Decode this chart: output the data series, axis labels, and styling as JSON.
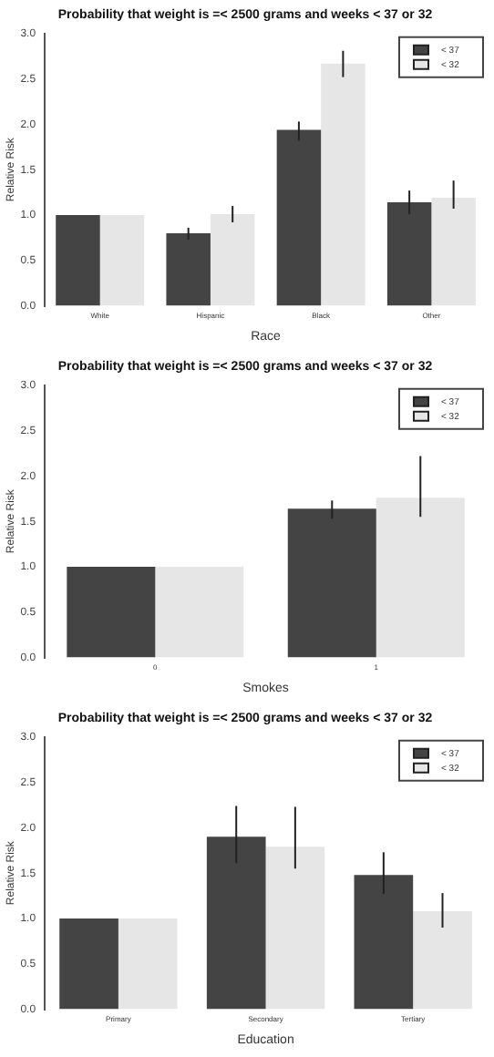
{
  "chart_data": [
    {
      "type": "bar",
      "title": "Probability that weight is =< 2500 grams and weeks < 37 or 32",
      "xlabel": "Race",
      "ylabel": "Relative Risk",
      "categories": [
        "White",
        "Hispanic",
        "Black",
        "Other"
      ],
      "ylim": [
        0,
        3
      ],
      "yticks": [
        {
          "value": 0,
          "label": "0.0"
        },
        {
          "value": 0.5,
          "label": "0.5"
        },
        {
          "value": 1,
          "label": "1.0"
        },
        {
          "value": 1.5,
          "label": "1.5"
        },
        {
          "value": 2,
          "label": "2.0"
        },
        {
          "value": 2.5,
          "label": "2.5"
        },
        {
          "value": 3,
          "label": "3.0"
        }
      ],
      "legend": "top right",
      "grid": false,
      "series": [
        {
          "name": "< 37",
          "color": "#444444",
          "values": [
            1,
            0.8,
            1.94,
            1.14
          ],
          "errors": [
            null,
            [
              0.73,
              0.86
            ],
            [
              1.82,
              2.03
            ],
            [
              1.01,
              1.27
            ]
          ]
        },
        {
          "name": "< 32",
          "color": "#e6e6e6",
          "values": [
            1,
            1.01,
            2.67,
            1.19
          ],
          "errors": [
            null,
            [
              0.92,
              1.1
            ],
            [
              2.52,
              2.81
            ],
            [
              1.07,
              1.38
            ]
          ]
        }
      ]
    },
    {
      "type": "bar",
      "title": "Probability that weight is =< 2500 grams and weeks < 37 or 32",
      "xlabel": "Smokes",
      "ylabel": "Relative Risk",
      "categories": [
        "0",
        "1"
      ],
      "ylim": [
        0,
        3
      ],
      "yticks": [
        {
          "value": 0,
          "label": "0.0"
        },
        {
          "value": 0.5,
          "label": "0.5"
        },
        {
          "value": 1,
          "label": "1.0"
        },
        {
          "value": 1.5,
          "label": "1.5"
        },
        {
          "value": 2,
          "label": "2.0"
        },
        {
          "value": 2.5,
          "label": "2.5"
        },
        {
          "value": 3,
          "label": "3.0"
        }
      ],
      "legend": "top right",
      "grid": false,
      "series": [
        {
          "name": "< 37",
          "color": "#444444",
          "values": [
            1,
            1.64
          ],
          "errors": [
            null,
            [
              1.53,
              1.73
            ]
          ]
        },
        {
          "name": "< 32",
          "color": "#e6e6e6",
          "values": [
            1,
            1.76
          ],
          "errors": [
            null,
            [
              1.55,
              2.22
            ]
          ]
        }
      ]
    },
    {
      "type": "bar",
      "title": "Probability that weight is =< 2500 grams and weeks < 37 or 32",
      "xlabel": "Education",
      "ylabel": "Relative Risk",
      "categories": [
        "Primary",
        "Secondary",
        "Tertiary"
      ],
      "ylim": [
        0,
        3
      ],
      "yticks": [
        {
          "value": 0,
          "label": "0.0"
        },
        {
          "value": 0.5,
          "label": "0.5"
        },
        {
          "value": 1,
          "label": "1.0"
        },
        {
          "value": 1.5,
          "label": "1.5"
        },
        {
          "value": 2,
          "label": "2.0"
        },
        {
          "value": 2.5,
          "label": "2.5"
        },
        {
          "value": 3,
          "label": "3.0"
        }
      ],
      "legend": "top right",
      "grid": false,
      "series": [
        {
          "name": "< 37",
          "color": "#444444",
          "values": [
            1,
            1.9,
            1.48
          ],
          "errors": [
            null,
            [
              1.61,
              2.24
            ],
            [
              1.27,
              1.73
            ]
          ]
        },
        {
          "name": "< 32",
          "color": "#e6e6e6",
          "values": [
            1,
            1.79,
            1.08
          ],
          "errors": [
            null,
            [
              1.55,
              2.23
            ],
            [
              0.9,
              1.28
            ]
          ]
        }
      ]
    }
  ]
}
